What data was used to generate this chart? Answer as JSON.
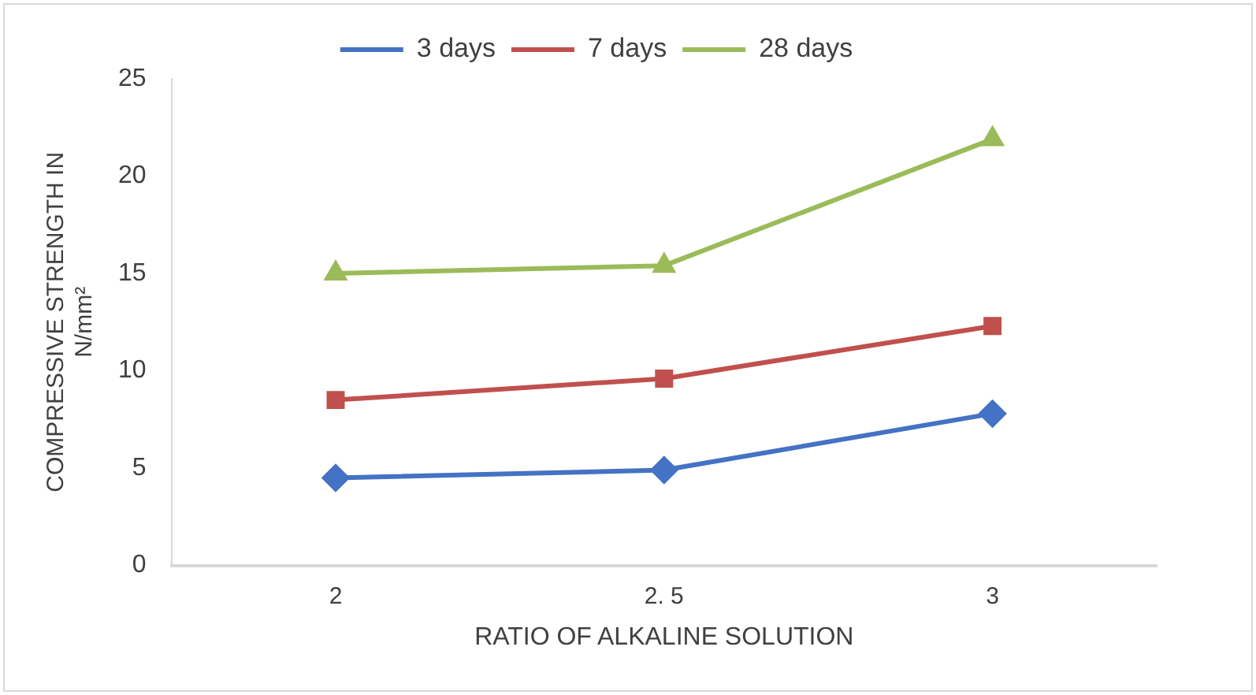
{
  "chart_data": {
    "type": "line",
    "xlabel": "RATIO OF ALKALINE SOLUTION",
    "ylabel": "COMPRESSIVE STRENGTH IN N/mm²",
    "categories": [
      "2",
      "2. 5",
      "3"
    ],
    "series": [
      {
        "name": "3 days",
        "color": "#4472c4",
        "marker": "diamond",
        "values": [
          4.5,
          4.9,
          7.8
        ]
      },
      {
        "name": "7 days",
        "color": "#c0504d",
        "marker": "square",
        "values": [
          8.5,
          9.6,
          12.3
        ]
      },
      {
        "name": "28 days",
        "color": "#9bbb59",
        "marker": "triangle",
        "values": [
          15,
          15.4,
          21.9
        ]
      }
    ],
    "ylim": [
      0,
      25
    ],
    "yticks": [
      0,
      5,
      10,
      15,
      20,
      25
    ],
    "grid": false,
    "legend": "top",
    "line_style": "solid"
  }
}
